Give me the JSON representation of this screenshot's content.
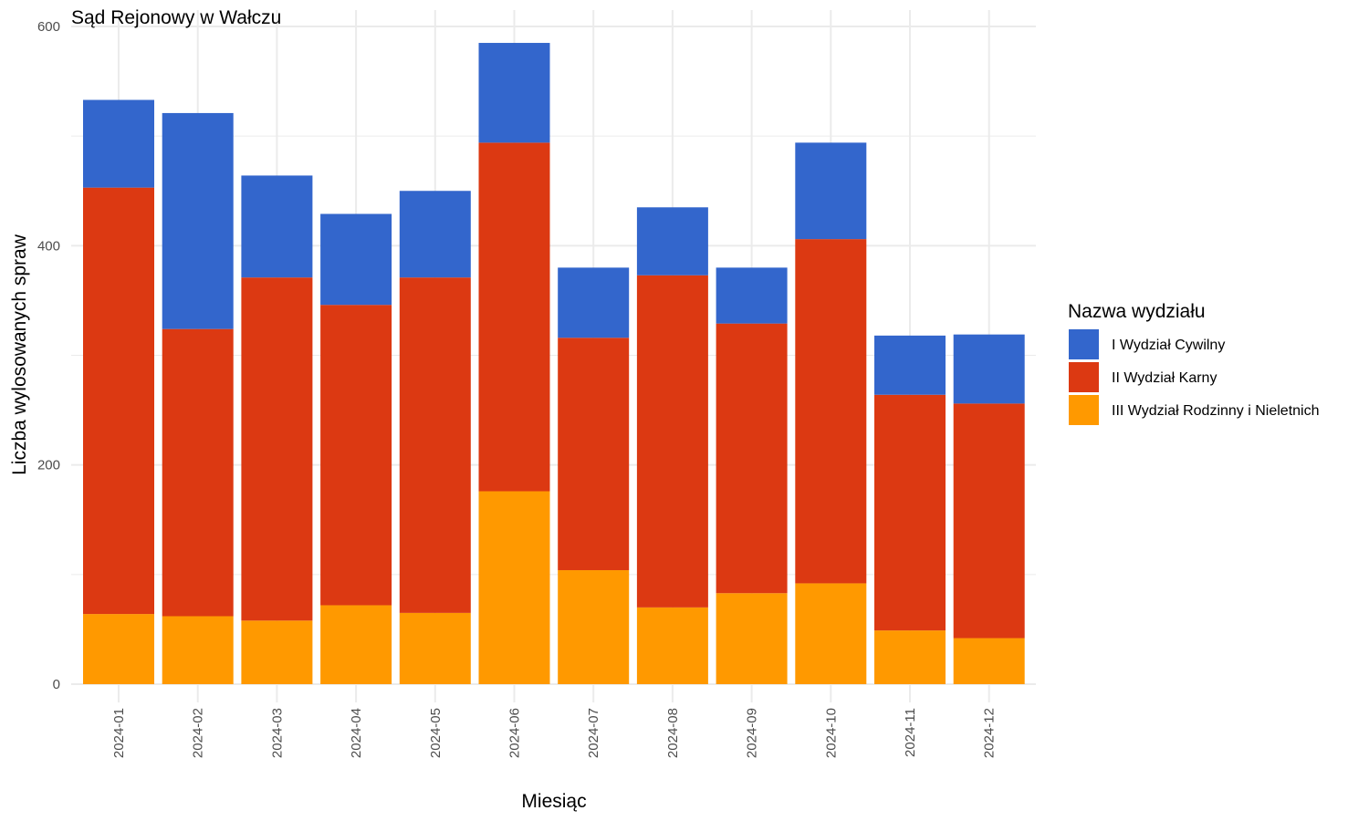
{
  "chart_data": {
    "type": "bar",
    "stacked": true,
    "title": "Sąd Rejonowy w Wałczu",
    "xlabel": "Miesiąc",
    "ylabel": "Liczba wylosowanych spraw",
    "ylim": [
      0,
      600
    ],
    "yticks": [
      0,
      200,
      400,
      600
    ],
    "grid": true,
    "legend_title": "Nazwa wydziału",
    "legend_position": "right",
    "categories": [
      "2024-01",
      "2024-02",
      "2024-03",
      "2024-04",
      "2024-05",
      "2024-06",
      "2024-07",
      "2024-08",
      "2024-09",
      "2024-10",
      "2024-11",
      "2024-12"
    ],
    "series": [
      {
        "name": "III Wydział Rodzinny i Nieletnich",
        "color": "#FF9900",
        "values": [
          64,
          62,
          58,
          72,
          65,
          176,
          104,
          70,
          83,
          92,
          49,
          42
        ]
      },
      {
        "name": "II Wydział Karny",
        "color": "#DC3912",
        "values": [
          389,
          262,
          313,
          274,
          306,
          318,
          212,
          303,
          246,
          314,
          215,
          214
        ]
      },
      {
        "name": "I Wydział Cywilny",
        "color": "#3366CC",
        "values": [
          80,
          197,
          93,
          83,
          79,
          91,
          64,
          62,
          51,
          88,
          54,
          63
        ]
      }
    ]
  }
}
